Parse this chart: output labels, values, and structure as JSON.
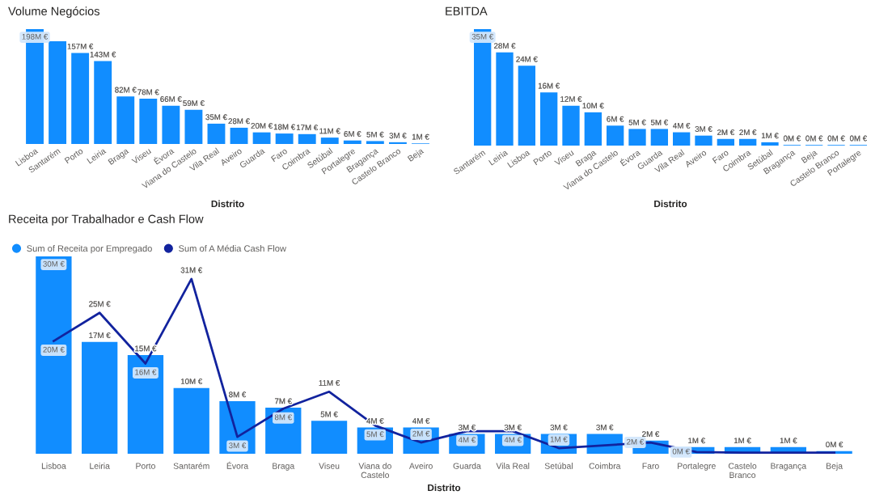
{
  "chart_data": [
    {
      "type": "bar",
      "title": "Volume Negócios",
      "xlabel": "Distrito",
      "categories": [
        "Lisboa",
        "Santarém",
        "Porto",
        "Leiria",
        "Braga",
        "Viseu",
        "Évora",
        "Viana do Castelo",
        "Vila Real",
        "Aveiro",
        "Guarda",
        "Faro",
        "Coimbra",
        "Setúbal",
        "Portalegre",
        "Bragança",
        "Castelo Branco",
        "Beja"
      ],
      "values": [
        198,
        177,
        157,
        143,
        82,
        78,
        66,
        59,
        35,
        28,
        20,
        18,
        17,
        11,
        6,
        5,
        3,
        1
      ],
      "value_labels": [
        "198M €",
        null,
        "157M €",
        "143M €",
        "82M €",
        "78M €",
        "66M €",
        "59M €",
        "35M €",
        "28M €",
        "20M €",
        "18M €",
        "17M €",
        "11M €",
        "6M €",
        "5M €",
        "3M €",
        "1M €"
      ],
      "color": "#118dff",
      "ylim": [
        0,
        198
      ],
      "tick_labels": "x"
    },
    {
      "type": "bar",
      "title": "EBITDA",
      "xlabel": "Distrito",
      "categories": [
        "Santarém",
        "Leiria",
        "Lisboa",
        "Porto",
        "Viseu",
        "Braga",
        "Viana do Castelo",
        "Évora",
        "Guarda",
        "Vila Real",
        "Aveiro",
        "Faro",
        "Coimbra",
        "Setúbal",
        "Bragança",
        "Beja",
        "Castelo Branco",
        "Portalegre"
      ],
      "values": [
        35,
        28,
        24,
        16,
        12,
        10,
        6,
        5,
        5,
        4,
        3,
        2,
        2,
        1,
        0.2,
        0.2,
        0.2,
        0.2
      ],
      "value_labels": [
        "35M €",
        "28M €",
        "24M €",
        "16M €",
        "12M €",
        "10M €",
        "6M €",
        "5M €",
        "5M €",
        "4M €",
        "3M €",
        "2M €",
        "2M €",
        "1M €",
        "0M €",
        "0M €",
        "0M €",
        "0M €"
      ],
      "color": "#118dff",
      "ylim": [
        0,
        35
      ],
      "tick_labels": "x"
    },
    {
      "type": "bar",
      "title": "Receita por Trabalhador e Cash Flow",
      "xlabel": "Distrito",
      "categories": [
        "Lisboa",
        "Leiria",
        "Porto",
        "Santarém",
        "Évora",
        "Braga",
        "Viseu",
        "Viana do Castelo",
        "Aveiro",
        "Guarda",
        "Vila Real",
        "Setúbal",
        "Coimbra",
        "Faro",
        "Portalegre",
        "Castelo Branco",
        "Bragança",
        "Beja"
      ],
      "series": [
        {
          "name": "Sum of Receita por Empregado",
          "type": "bar",
          "color": "#118dff",
          "values": [
            30,
            17,
            15,
            10,
            8,
            7,
            5,
            4,
            4,
            3,
            3,
            3,
            3,
            2,
            1,
            1,
            1,
            0.4
          ],
          "value_labels": [
            "30M €",
            "17M €",
            "15M €",
            "10M €",
            "8M €",
            "7M €",
            "5M €",
            "4M €",
            "4M €",
            "3M €",
            "3M €",
            "3M €",
            "3M €",
            "2M €",
            "1M €",
            "1M €",
            "1M €",
            "0M €"
          ]
        },
        {
          "name": "Sum of A Média Cash Flow",
          "type": "line",
          "axis": "y2",
          "color": "#12239e",
          "values": [
            20,
            25,
            16,
            31,
            3,
            8,
            11,
            5,
            2,
            4,
            4,
            1,
            1.5,
            2,
            0.3,
            0.2,
            0.2,
            0.2
          ],
          "value_labels": [
            "20M €",
            "25M €",
            "16M €",
            "31M €",
            "3M €",
            "8M €",
            "11M €",
            "5M €",
            "2M €",
            "4M €",
            "4M €",
            "1M €",
            null,
            "2M €",
            "0M €",
            null,
            null,
            null
          ]
        }
      ],
      "ylim": [
        0,
        30
      ],
      "y2lim": [
        0,
        35
      ],
      "legend": "top left",
      "tick_labels": "x"
    }
  ]
}
